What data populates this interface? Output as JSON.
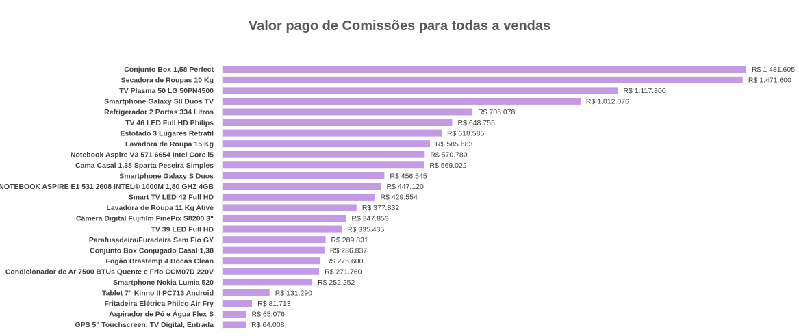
{
  "chart_data": {
    "type": "bar",
    "orientation": "horizontal",
    "title": "Valor pago de Comissões para todas a vendas",
    "xlabel": "",
    "ylabel": "",
    "grid": false,
    "bar_color": "#c39be2",
    "categories": [
      "Conjunto Box 1,58 Perfect",
      "Secadora de Roupas 10 Kg",
      "TV Plasma 50 LG 50PN4500",
      "Smartphone Galaxy SII Duos TV",
      "Refrigerador 2 Portas 334 Litros",
      "TV 46 LED Full HD Philips",
      "Estofado 3 Lugares Retrátil",
      "Lavadora de Roupa 15 Kg",
      "Notebook Aspire V3 571 6654 Intel Core i5",
      "Cama Casal 1,38 Sparta Peseira Simples",
      "Smartphone Galaxy S Duos",
      "NOTEBOOK ASPIRE E1 531 2608 INTEL® 1000M 1,80 GHZ 4GB",
      "Smart TV LED 42 Full HD",
      "Lavadora de Roupa 11 Kg Ative",
      "Câmera Digital Fujifilm FinePix S8200 3\"",
      "TV 39 LED Full HD",
      "Parafusadeira/Furadeira Sem Fio GY",
      "Conjunto Box Conjugado Casal 1,38",
      "Fogão Brastemp 4 Bocas Clean",
      "Condicionador de Ar 7500 BTUs Quente e Frio CCM07D 220V",
      "Smartphone Nokia Lumia 520",
      "Tablet 7\" Kinno II PC713 Android",
      "Fritadeira Elétrica Philco Air Fry",
      "Aspirador de Pó e Água Flex S",
      "GPS 5\" Touchscreen, TV Digital, Entrada"
    ],
    "values": [
      1481605,
      1471600,
      1117800,
      1012076,
      706078,
      648755,
      618585,
      585683,
      570780,
      569022,
      456545,
      447120,
      429554,
      377832,
      347853,
      335435,
      289831,
      286837,
      275600,
      271760,
      252252,
      131290,
      81713,
      65076,
      64008
    ],
    "data_labels": [
      "R$ 1.481.605",
      "R$ 1.471.600",
      "R$ 1.117.800",
      "R$ 1.012.076",
      "R$ 706.078",
      "R$ 648.755",
      "R$ 618.585",
      "R$ 585.683",
      "R$ 570.780",
      "R$ 569.022",
      "R$ 456.545",
      "R$ 447.120",
      "R$ 429.554",
      "R$ 377.832",
      "R$ 347.853",
      "R$ 335.435",
      "R$ 289.831",
      "R$ 286.837",
      "R$ 275.600",
      "R$ 271.760",
      "R$ 252.252",
      "R$ 131.290",
      "R$ 81.713",
      "R$ 65.076",
      "R$ 64.008"
    ]
  }
}
